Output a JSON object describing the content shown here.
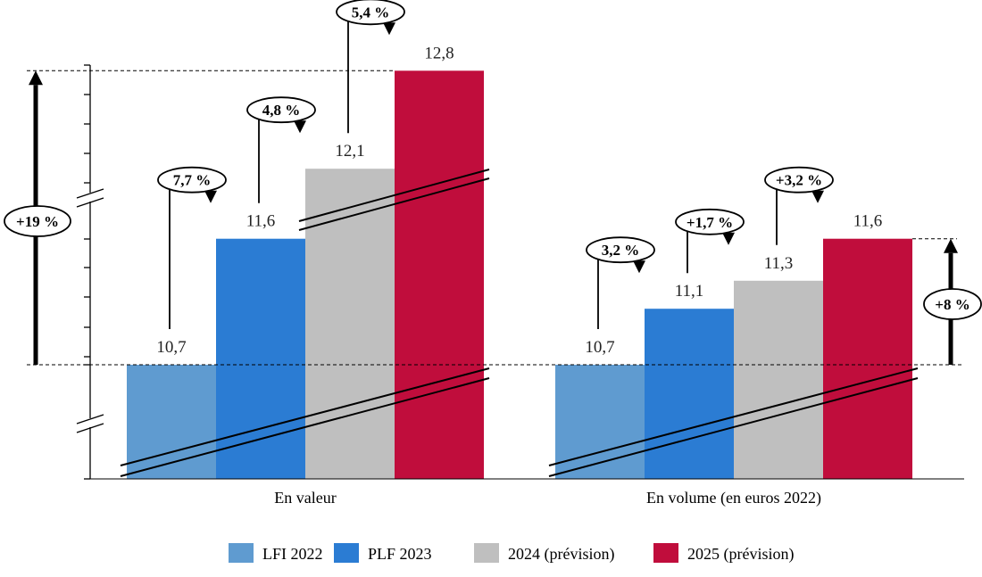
{
  "chart_data": {
    "type": "bar",
    "title": "",
    "groups": [
      "En valeur",
      "En volume (en euros 2022)"
    ],
    "series": [
      {
        "name": "LFI 2022",
        "color": "#5f9bd0",
        "values": [
          10.7,
          10.7
        ],
        "labels": [
          "10,7",
          "10,7"
        ]
      },
      {
        "name": "PLF 2023",
        "color": "#2b7cd3",
        "values": [
          11.6,
          11.1
        ],
        "labels": [
          "11,6",
          "11,1"
        ]
      },
      {
        "name": "2024 (prévision)",
        "color": "#bfbfbf",
        "values": [
          12.1,
          11.3
        ],
        "labels": [
          "12,1",
          "11,3"
        ]
      },
      {
        "name": "2025 (prévision)",
        "color": "#c00d3c",
        "values": [
          12.8,
          11.6
        ],
        "labels": [
          "12,8",
          "11,6"
        ]
      }
    ],
    "step_changes": [
      [
        "7,7 %",
        "4,8 %",
        "5,4 %"
      ],
      [
        "3,2 %",
        "+1,7 %",
        "+3,2 %"
      ]
    ],
    "total_changes": [
      "+19 %",
      "+8 %"
    ],
    "axis_broken": true,
    "legend_position": "bottom"
  }
}
